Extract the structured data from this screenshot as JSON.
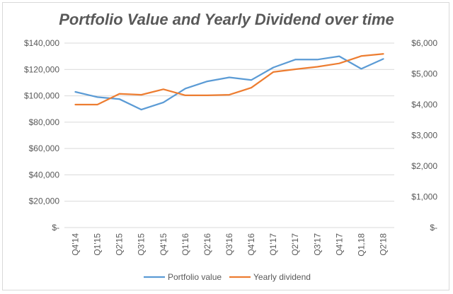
{
  "chart_data": {
    "type": "line",
    "title": "Portfolio Value and Yearly Dividend over time",
    "categories": [
      "Q4'14",
      "Q1'15",
      "Q2'15",
      "Q3'15",
      "Q4'15",
      "Q1'16",
      "Q2'16",
      "Q3'16",
      "Q4'16",
      "Q1'17",
      "Q2'17",
      "Q3'17",
      "Q4'17",
      "Q1,18",
      "Q2'18"
    ],
    "y_left": {
      "range": [
        0,
        140000
      ],
      "tick_labels": [
        "$-",
        "$20,000",
        "$40,000",
        "$60,000",
        "$80,000",
        "$100,000",
        "$120,000",
        "$140,000"
      ]
    },
    "y_right": {
      "range": [
        0,
        6000
      ],
      "tick_labels": [
        "$-",
        "$1,000",
        "$2,000",
        "$3,000",
        "$4,000",
        "$5,000",
        "$6,000"
      ]
    },
    "series": [
      {
        "name": "Portfolio value",
        "axis": "left",
        "color": "#5b9bd5",
        "values": [
          103000,
          99000,
          97500,
          89500,
          95000,
          105500,
          111000,
          114000,
          112000,
          121500,
          127500,
          127500,
          130000,
          120500,
          128000
        ]
      },
      {
        "name": "Yearly dividend",
        "axis": "right",
        "color": "#ed7d31",
        "values": [
          4000,
          4000,
          4350,
          4320,
          4500,
          4300,
          4300,
          4320,
          4550,
          5060,
          5150,
          5230,
          5340,
          5580,
          5650
        ]
      }
    ],
    "grid": true,
    "legend": "bottom"
  }
}
